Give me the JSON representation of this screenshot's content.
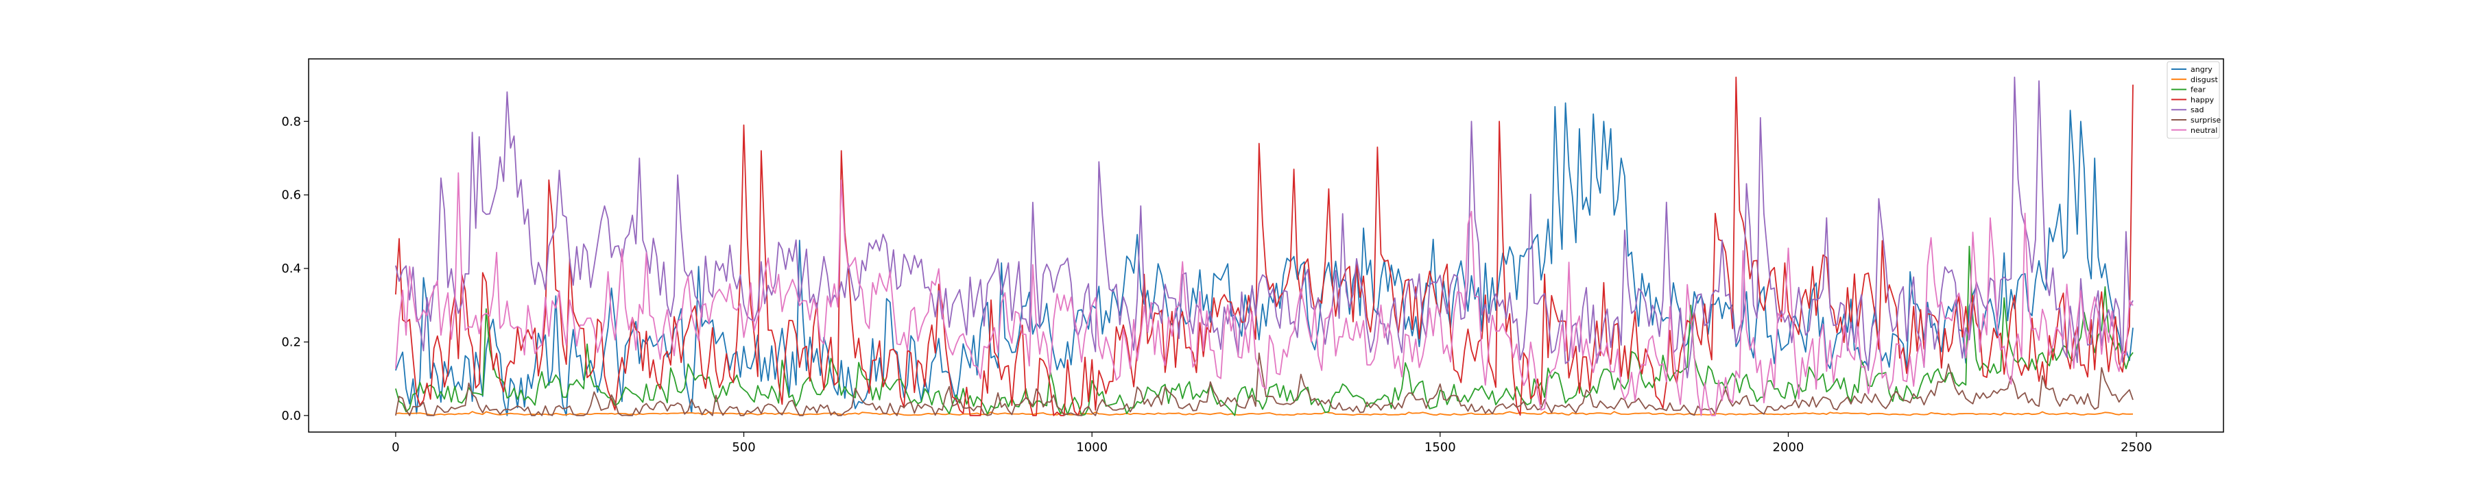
{
  "chart_data": {
    "type": "line",
    "title": "",
    "xlabel": "",
    "ylabel": "",
    "xlim": [
      -125,
      2625
    ],
    "ylim": [
      -0.045,
      0.97
    ],
    "x_ticks": [
      {
        "value": 0,
        "label": "0"
      },
      {
        "value": 500,
        "label": "500"
      },
      {
        "value": 1000,
        "label": "1000"
      },
      {
        "value": 1500,
        "label": "1500"
      },
      {
        "value": 2000,
        "label": "2000"
      },
      {
        "value": 2500,
        "label": "2500"
      }
    ],
    "y_ticks": [
      {
        "value": 0.0,
        "label": "0.0"
      },
      {
        "value": 0.2,
        "label": "0.2"
      },
      {
        "value": 0.4,
        "label": "0.4"
      },
      {
        "value": 0.6,
        "label": "0.6"
      },
      {
        "value": 0.8,
        "label": "0.8"
      }
    ],
    "grid": false,
    "legend_position": "top-right",
    "x_start": 0,
    "x_step": 5,
    "n_points": 500,
    "series": [
      {
        "name": "angry",
        "color": "#1f77b4",
        "profile": [
          [
            0,
            0.08
          ],
          [
            200,
            0.12
          ],
          [
            500,
            0.15
          ],
          [
            700,
            0.14
          ],
          [
            900,
            0.2
          ],
          [
            1000,
            0.18
          ],
          [
            1050,
            0.38
          ],
          [
            1300,
            0.3
          ],
          [
            1500,
            0.3
          ],
          [
            1600,
            0.32
          ],
          [
            1650,
            0.45
          ],
          [
            1700,
            0.55
          ],
          [
            1750,
            0.5
          ],
          [
            1800,
            0.28
          ],
          [
            2000,
            0.22
          ],
          [
            2200,
            0.22
          ],
          [
            2350,
            0.3
          ],
          [
            2400,
            0.48
          ],
          [
            2450,
            0.3
          ],
          [
            2500,
            0.22
          ]
        ],
        "amp": 0.18,
        "spikes": [
          [
            1665,
            0.84
          ],
          [
            1680,
            0.85
          ],
          [
            1700,
            0.78
          ],
          [
            1720,
            0.82
          ],
          [
            1745,
            0.78
          ],
          [
            1760,
            0.7
          ],
          [
            2405,
            0.83
          ],
          [
            2420,
            0.8
          ],
          [
            2440,
            0.7
          ]
        ]
      },
      {
        "name": "disgust",
        "color": "#ff7f0e",
        "profile": [
          [
            0,
            0.004
          ],
          [
            2500,
            0.004
          ]
        ],
        "amp": 0.004,
        "spikes": []
      },
      {
        "name": "fear",
        "color": "#2ca02c",
        "profile": [
          [
            0,
            0.05
          ],
          [
            100,
            0.06
          ],
          [
            300,
            0.07
          ],
          [
            500,
            0.06
          ],
          [
            800,
            0.05
          ],
          [
            1000,
            0.03
          ],
          [
            1100,
            0.05
          ],
          [
            1400,
            0.05
          ],
          [
            1700,
            0.06
          ],
          [
            1800,
            0.12
          ],
          [
            2000,
            0.06
          ],
          [
            2200,
            0.08
          ],
          [
            2300,
            0.12
          ],
          [
            2450,
            0.2
          ],
          [
            2500,
            0.12
          ]
        ],
        "amp": 0.06,
        "spikes": [
          [
            130,
            0.29
          ],
          [
            1860,
            0.3
          ],
          [
            2260,
            0.46
          ],
          [
            2310,
            0.32
          ],
          [
            2455,
            0.35
          ]
        ]
      },
      {
        "name": "happy",
        "color": "#d62728",
        "profile": [
          [
            0,
            0.12
          ],
          [
            200,
            0.18
          ],
          [
            500,
            0.2
          ],
          [
            800,
            0.1
          ],
          [
            1000,
            0.08
          ],
          [
            1100,
            0.15
          ],
          [
            1250,
            0.35
          ],
          [
            1400,
            0.3
          ],
          [
            1500,
            0.25
          ],
          [
            1600,
            0.15
          ],
          [
            1800,
            0.15
          ],
          [
            1900,
            0.3
          ],
          [
            2000,
            0.35
          ],
          [
            2100,
            0.3
          ],
          [
            2200,
            0.2
          ],
          [
            2400,
            0.18
          ],
          [
            2500,
            0.25
          ]
        ],
        "amp": 0.2,
        "spikes": [
          [
            500,
            0.79
          ],
          [
            525,
            0.72
          ],
          [
            640,
            0.72
          ],
          [
            1240,
            0.74
          ],
          [
            1290,
            0.67
          ],
          [
            1410,
            0.73
          ],
          [
            1585,
            0.8
          ],
          [
            1925,
            0.92
          ],
          [
            2495,
            0.9
          ]
        ]
      },
      {
        "name": "sad",
        "color": "#9467bd",
        "profile": [
          [
            0,
            0.3
          ],
          [
            100,
            0.35
          ],
          [
            140,
            0.65
          ],
          [
            165,
            0.72
          ],
          [
            200,
            0.35
          ],
          [
            300,
            0.45
          ],
          [
            400,
            0.4
          ],
          [
            600,
            0.35
          ],
          [
            800,
            0.35
          ],
          [
            1000,
            0.3
          ],
          [
            1200,
            0.32
          ],
          [
            1500,
            0.3
          ],
          [
            1700,
            0.2
          ],
          [
            1900,
            0.22
          ],
          [
            2200,
            0.25
          ],
          [
            2350,
            0.3
          ],
          [
            2500,
            0.2
          ]
        ],
        "amp": 0.2,
        "spikes": [
          [
            160,
            0.88
          ],
          [
            350,
            0.7
          ],
          [
            1010,
            0.69
          ],
          [
            1545,
            0.8
          ],
          [
            1960,
            0.81
          ],
          [
            2325,
            0.92
          ],
          [
            2360,
            0.91
          ]
        ]
      },
      {
        "name": "surprise",
        "color": "#8c564b",
        "profile": [
          [
            0,
            0.01
          ],
          [
            1000,
            0.02
          ],
          [
            1200,
            0.04
          ],
          [
            1500,
            0.03
          ],
          [
            2000,
            0.03
          ],
          [
            2200,
            0.05
          ],
          [
            2500,
            0.04
          ]
        ],
        "amp": 0.04,
        "spikes": [
          [
            1240,
            0.17
          ],
          [
            2230,
            0.14
          ],
          [
            2450,
            0.13
          ]
        ]
      },
      {
        "name": "neutral",
        "color": "#e377c2",
        "profile": [
          [
            0,
            0.2
          ],
          [
            200,
            0.25
          ],
          [
            500,
            0.3
          ],
          [
            700,
            0.3
          ],
          [
            1000,
            0.2
          ],
          [
            1200,
            0.2
          ],
          [
            1500,
            0.22
          ],
          [
            1700,
            0.12
          ],
          [
            1900,
            0.1
          ],
          [
            2100,
            0.15
          ],
          [
            2300,
            0.2
          ],
          [
            2500,
            0.18
          ]
        ],
        "amp": 0.18,
        "spikes": [
          [
            90,
            0.66
          ],
          [
            640,
            0.64
          ],
          [
            1540,
            0.52
          ],
          [
            2340,
            0.55
          ]
        ]
      }
    ]
  }
}
